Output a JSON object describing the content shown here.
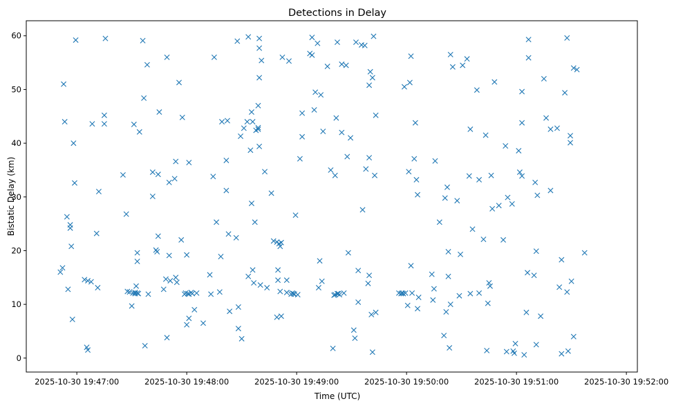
{
  "chart_data": {
    "type": "scatter",
    "title": "Detections in Delay",
    "xlabel": "Time (UTC)",
    "ylabel": "Bistatic Delay (km)",
    "x_unit": "minutes past 2025-10-30 19:47:00",
    "xlim": [
      -0.46,
      5.1
    ],
    "ylim": [
      -2.6,
      62.8
    ],
    "x_ticks": [
      {
        "v": 0,
        "label": "2025-10-30 19:47:00"
      },
      {
        "v": 1,
        "label": "2025-10-30 19:48:00"
      },
      {
        "v": 2,
        "label": "2025-10-30 19:49:00"
      },
      {
        "v": 3,
        "label": "2025-10-30 19:50:00"
      },
      {
        "v": 4,
        "label": "2025-10-30 19:51:00"
      },
      {
        "v": 5,
        "label": "2025-10-30 19:52:00"
      }
    ],
    "y_ticks": [
      0,
      10,
      20,
      30,
      40,
      50,
      60
    ],
    "grid": false,
    "marker": "x",
    "color": "#1f77b4",
    "series": [
      {
        "points": [
          [
            -0.15,
            16.0
          ],
          [
            -0.13,
            16.8
          ],
          [
            -0.12,
            51.0
          ],
          [
            -0.11,
            44.0
          ],
          [
            -0.09,
            26.3
          ],
          [
            -0.08,
            12.8
          ],
          [
            -0.06,
            24.8
          ],
          [
            -0.06,
            24.2
          ],
          [
            -0.05,
            20.8
          ],
          [
            -0.04,
            7.2
          ],
          [
            -0.03,
            40.0
          ],
          [
            -0.02,
            32.6
          ],
          [
            -0.01,
            59.2
          ],
          [
            0.07,
            14.6
          ],
          [
            0.09,
            2.0
          ],
          [
            0.1,
            1.5
          ],
          [
            0.1,
            14.4
          ],
          [
            0.13,
            14.2
          ],
          [
            0.14,
            43.6
          ],
          [
            0.18,
            23.2
          ],
          [
            0.19,
            13.1
          ],
          [
            0.2,
            31.0
          ],
          [
            0.25,
            45.2
          ],
          [
            0.25,
            43.6
          ],
          [
            0.26,
            59.5
          ],
          [
            0.42,
            34.1
          ],
          [
            0.45,
            26.8
          ],
          [
            0.46,
            12.4
          ],
          [
            0.48,
            12.3
          ],
          [
            0.5,
            9.7
          ],
          [
            0.51,
            12.1
          ],
          [
            0.52,
            43.5
          ],
          [
            0.53,
            12.0
          ],
          [
            0.53,
            12.2
          ],
          [
            0.54,
            13.4
          ],
          [
            0.55,
            12.1
          ],
          [
            0.55,
            19.6
          ],
          [
            0.55,
            18.0
          ],
          [
            0.56,
            12.0
          ],
          [
            0.57,
            42.1
          ],
          [
            0.6,
            59.1
          ],
          [
            0.61,
            48.4
          ],
          [
            0.62,
            2.3
          ],
          [
            0.64,
            54.6
          ],
          [
            0.65,
            11.9
          ],
          [
            0.69,
            34.6
          ],
          [
            0.69,
            30.1
          ],
          [
            0.72,
            20.1
          ],
          [
            0.73,
            19.8
          ],
          [
            0.74,
            22.7
          ],
          [
            0.74,
            34.2
          ],
          [
            0.75,
            45.8
          ],
          [
            0.79,
            12.8
          ],
          [
            0.81,
            14.7
          ],
          [
            0.82,
            3.8
          ],
          [
            0.82,
            56.0
          ],
          [
            0.84,
            32.7
          ],
          [
            0.84,
            19.1
          ],
          [
            0.85,
            14.4
          ],
          [
            0.89,
            33.4
          ],
          [
            0.9,
            36.6
          ],
          [
            0.9,
            15.0
          ],
          [
            0.91,
            14.1
          ],
          [
            0.93,
            51.3
          ],
          [
            0.95,
            22.0
          ],
          [
            0.96,
            44.8
          ],
          [
            0.98,
            11.9
          ],
          [
            0.99,
            12.1
          ],
          [
            1.0,
            6.2
          ],
          [
            1.0,
            19.2
          ],
          [
            1.01,
            12.0
          ],
          [
            1.02,
            36.4
          ],
          [
            1.02,
            7.4
          ],
          [
            1.02,
            11.9
          ],
          [
            1.04,
            12.2
          ],
          [
            1.05,
            12.0
          ],
          [
            1.07,
            9.0
          ],
          [
            1.09,
            12.1
          ],
          [
            1.15,
            6.5
          ],
          [
            1.21,
            15.5
          ],
          [
            1.22,
            11.9
          ],
          [
            1.24,
            33.8
          ],
          [
            1.25,
            56.0
          ],
          [
            1.27,
            25.3
          ],
          [
            1.3,
            12.3
          ],
          [
            1.31,
            18.9
          ],
          [
            1.32,
            44.0
          ],
          [
            1.36,
            36.8
          ],
          [
            1.36,
            31.2
          ],
          [
            1.37,
            44.2
          ],
          [
            1.38,
            23.1
          ],
          [
            1.39,
            8.7
          ],
          [
            1.45,
            22.4
          ],
          [
            1.46,
            59.0
          ],
          [
            1.47,
            9.5
          ],
          [
            1.47,
            5.5
          ],
          [
            1.49,
            41.3
          ],
          [
            1.5,
            3.6
          ],
          [
            1.52,
            42.8
          ],
          [
            1.55,
            44.0
          ],
          [
            1.56,
            59.8
          ],
          [
            1.56,
            15.2
          ],
          [
            1.58,
            38.7
          ],
          [
            1.59,
            45.8
          ],
          [
            1.59,
            28.8
          ],
          [
            1.6,
            16.4
          ],
          [
            1.6,
            44.0
          ],
          [
            1.61,
            14.0
          ],
          [
            1.62,
            25.3
          ],
          [
            1.63,
            42.4
          ],
          [
            1.65,
            42.9
          ],
          [
            1.65,
            42.6
          ],
          [
            1.65,
            47.0
          ],
          [
            1.66,
            59.5
          ],
          [
            1.66,
            57.7
          ],
          [
            1.66,
            52.2
          ],
          [
            1.66,
            39.4
          ],
          [
            1.67,
            13.6
          ],
          [
            1.68,
            55.4
          ],
          [
            1.71,
            34.7
          ],
          [
            1.73,
            13.1
          ],
          [
            1.77,
            30.7
          ],
          [
            1.79,
            21.8
          ],
          [
            1.82,
            21.6
          ],
          [
            1.82,
            7.6
          ],
          [
            1.83,
            14.5
          ],
          [
            1.83,
            16.4
          ],
          [
            1.84,
            21.3
          ],
          [
            1.85,
            20.8
          ],
          [
            1.86,
            21.5
          ],
          [
            1.86,
            7.8
          ],
          [
            1.85,
            12.4
          ],
          [
            1.87,
            56.0
          ],
          [
            1.91,
            14.5
          ],
          [
            1.91,
            12.2
          ],
          [
            1.93,
            55.3
          ],
          [
            1.95,
            11.9
          ],
          [
            1.96,
            12.1
          ],
          [
            1.97,
            12.0
          ],
          [
            1.98,
            11.9
          ],
          [
            1.99,
            26.6
          ],
          [
            2.01,
            11.8
          ],
          [
            2.03,
            37.1
          ],
          [
            2.05,
            45.6
          ],
          [
            2.05,
            41.2
          ],
          [
            2.12,
            56.7
          ],
          [
            2.14,
            56.4
          ],
          [
            2.14,
            59.7
          ],
          [
            2.16,
            46.2
          ],
          [
            2.17,
            49.5
          ],
          [
            2.19,
            58.6
          ],
          [
            2.2,
            13.1
          ],
          [
            2.21,
            18.1
          ],
          [
            2.22,
            49.0
          ],
          [
            2.23,
            14.3
          ],
          [
            2.24,
            42.2
          ],
          [
            2.28,
            54.3
          ],
          [
            2.31,
            35.0
          ],
          [
            2.33,
            1.8
          ],
          [
            2.34,
            11.7
          ],
          [
            2.35,
            11.8
          ],
          [
            2.35,
            34.0
          ],
          [
            2.36,
            44.7
          ],
          [
            2.37,
            58.8
          ],
          [
            2.37,
            12.0
          ],
          [
            2.38,
            12.0
          ],
          [
            2.39,
            11.8
          ],
          [
            2.41,
            54.7
          ],
          [
            2.41,
            42.0
          ],
          [
            2.43,
            12.1
          ],
          [
            2.45,
            54.5
          ],
          [
            2.46,
            37.5
          ],
          [
            2.47,
            19.6
          ],
          [
            2.49,
            41.0
          ],
          [
            2.52,
            5.2
          ],
          [
            2.53,
            3.7
          ],
          [
            2.54,
            58.8
          ],
          [
            2.56,
            10.4
          ],
          [
            2.56,
            16.3
          ],
          [
            2.59,
            58.3
          ],
          [
            2.6,
            27.6
          ],
          [
            2.62,
            58.2
          ],
          [
            2.63,
            35.2
          ],
          [
            2.65,
            13.9
          ],
          [
            2.66,
            15.4
          ],
          [
            2.66,
            37.3
          ],
          [
            2.66,
            50.8
          ],
          [
            2.67,
            53.3
          ],
          [
            2.68,
            8.1
          ],
          [
            2.69,
            52.2
          ],
          [
            2.69,
            1.1
          ],
          [
            2.7,
            59.9
          ],
          [
            2.71,
            34.0
          ],
          [
            2.72,
            8.5
          ],
          [
            2.72,
            45.2
          ],
          [
            2.93,
            12.1
          ],
          [
            2.95,
            12.0
          ],
          [
            2.96,
            12.1
          ],
          [
            2.97,
            12.0
          ],
          [
            2.98,
            50.5
          ],
          [
            2.99,
            12.1
          ],
          [
            3.01,
            9.8
          ],
          [
            3.02,
            34.7
          ],
          [
            3.03,
            51.3
          ],
          [
            3.04,
            56.2
          ],
          [
            3.04,
            17.2
          ],
          [
            3.05,
            12.1
          ],
          [
            3.07,
            37.1
          ],
          [
            3.08,
            43.8
          ],
          [
            3.09,
            33.2
          ],
          [
            3.1,
            9.2
          ],
          [
            3.1,
            30.4
          ],
          [
            3.11,
            11.3
          ],
          [
            3.23,
            15.6
          ],
          [
            3.24,
            10.8
          ],
          [
            3.25,
            12.9
          ],
          [
            3.26,
            36.7
          ],
          [
            3.3,
            25.3
          ],
          [
            3.34,
            4.2
          ],
          [
            3.35,
            29.8
          ],
          [
            3.36,
            8.6
          ],
          [
            3.37,
            31.8
          ],
          [
            3.38,
            19.8
          ],
          [
            3.38,
            15.2
          ],
          [
            3.39,
            1.9
          ],
          [
            3.4,
            10.0
          ],
          [
            3.4,
            56.5
          ],
          [
            3.42,
            54.2
          ],
          [
            3.46,
            29.3
          ],
          [
            3.48,
            11.6
          ],
          [
            3.49,
            19.3
          ],
          [
            3.51,
            54.5
          ],
          [
            3.55,
            55.7
          ],
          [
            3.57,
            33.9
          ],
          [
            3.58,
            12.0
          ],
          [
            3.58,
            42.6
          ],
          [
            3.6,
            24.0
          ],
          [
            3.64,
            49.9
          ],
          [
            3.66,
            12.1
          ],
          [
            3.66,
            33.2
          ],
          [
            3.7,
            22.1
          ],
          [
            3.72,
            41.5
          ],
          [
            3.73,
            1.4
          ],
          [
            3.74,
            10.2
          ],
          [
            3.75,
            14.0
          ],
          [
            3.76,
            13.4
          ],
          [
            3.77,
            34.0
          ],
          [
            3.78,
            27.8
          ],
          [
            3.8,
            51.4
          ],
          [
            3.84,
            28.4
          ],
          [
            3.88,
            22.0
          ],
          [
            3.9,
            39.5
          ],
          [
            3.91,
            1.2
          ],
          [
            3.92,
            29.9
          ],
          [
            3.96,
            28.7
          ],
          [
            3.97,
            1.3
          ],
          [
            3.98,
            0.9
          ],
          [
            3.99,
            2.7
          ],
          [
            4.02,
            38.6
          ],
          [
            4.03,
            34.6
          ],
          [
            4.05,
            33.9
          ],
          [
            4.05,
            49.6
          ],
          [
            4.05,
            43.8
          ],
          [
            4.07,
            0.6
          ],
          [
            4.09,
            8.5
          ],
          [
            4.1,
            15.9
          ],
          [
            4.11,
            59.3
          ],
          [
            4.11,
            55.9
          ],
          [
            4.16,
            15.4
          ],
          [
            4.17,
            32.7
          ],
          [
            4.18,
            19.9
          ],
          [
            4.18,
            2.5
          ],
          [
            4.19,
            30.3
          ],
          [
            4.22,
            7.8
          ],
          [
            4.25,
            52.0
          ],
          [
            4.27,
            44.7
          ],
          [
            4.31,
            31.2
          ],
          [
            4.31,
            42.6
          ],
          [
            4.37,
            42.8
          ],
          [
            4.39,
            13.2
          ],
          [
            4.41,
            18.3
          ],
          [
            4.41,
            0.8
          ],
          [
            4.44,
            49.4
          ],
          [
            4.46,
            12.3
          ],
          [
            4.46,
            59.6
          ],
          [
            4.47,
            1.3
          ],
          [
            4.49,
            41.4
          ],
          [
            4.49,
            40.1
          ],
          [
            4.5,
            14.3
          ],
          [
            4.52,
            54.0
          ],
          [
            4.52,
            4.0
          ],
          [
            4.55,
            53.7
          ],
          [
            4.62,
            19.6
          ]
        ]
      }
    ]
  }
}
